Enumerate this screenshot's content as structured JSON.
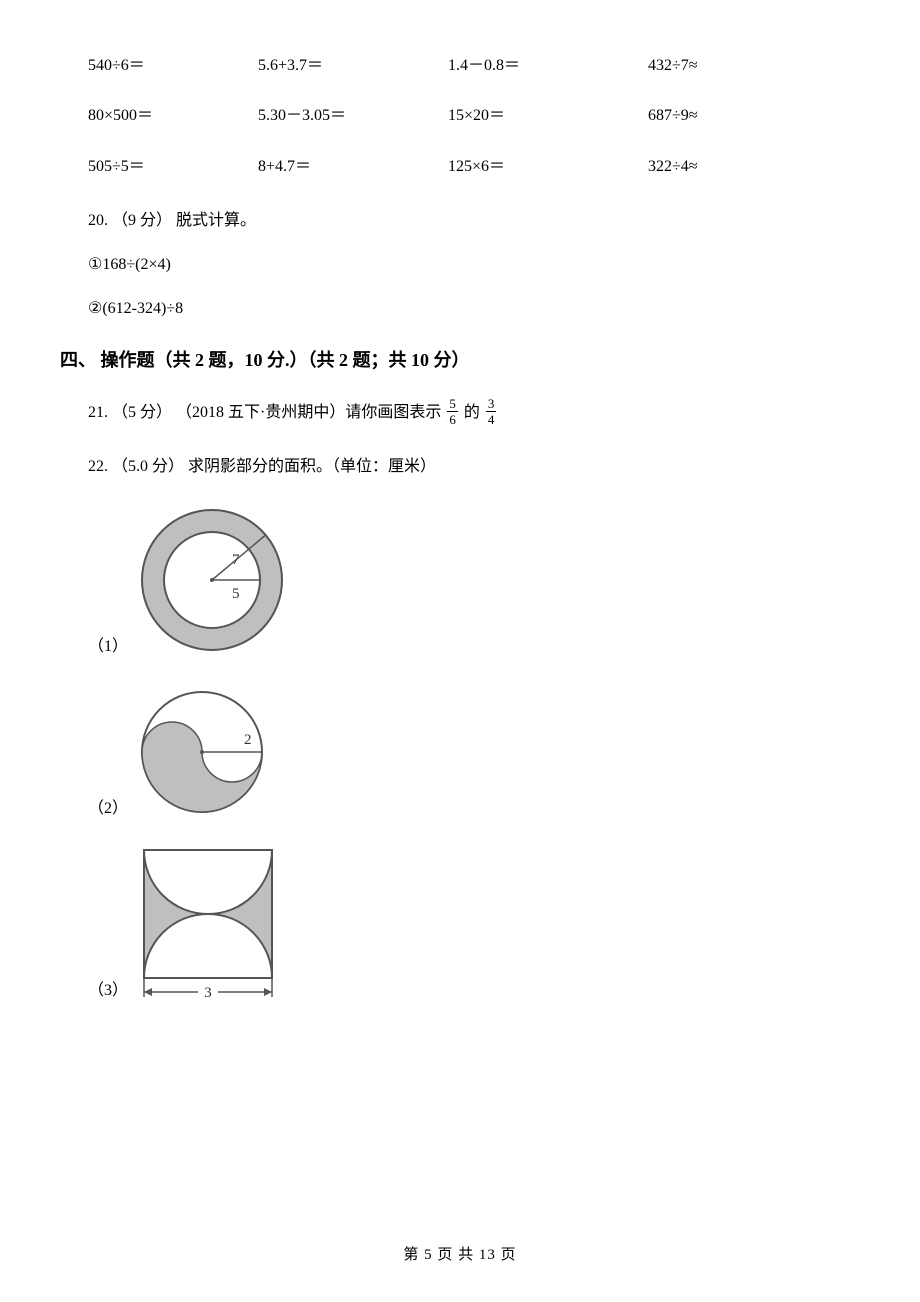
{
  "calc": {
    "rows": [
      {
        "c1": "540÷6＝",
        "c2": "5.6+3.7＝",
        "c3": "1.4－0.8＝",
        "c4": "432÷7≈"
      },
      {
        "c1": "80×500＝",
        "c2": "5.30－3.05＝",
        "c3": "15×20＝",
        "c4": "687÷9≈"
      },
      {
        "c1": "505÷5＝",
        "c2": "8+4.7＝",
        "c3": "125×6＝",
        "c4": "322÷4≈"
      }
    ]
  },
  "q20": {
    "title": "20. （9 分） 脱式计算。",
    "item1": "①168÷(2×4)",
    "item2": "②(612-324)÷8"
  },
  "section4": {
    "heading": "四、 操作题（共 2 题，10 分.）（共 2 题；共 10 分）"
  },
  "q21": {
    "prefix": "21. （5 分） （2018 五下·贵州期中）请你画图表示 ",
    "frac1_num": "5",
    "frac1_den": "6",
    "mid": " 的 ",
    "frac2_num": "3",
    "frac2_den": "4"
  },
  "q22": {
    "title": "22. （5.0 分） 求阴影部分的面积。（单位：厘米）"
  },
  "figs": {
    "f1": {
      "label": "（1）",
      "outer_r": 70,
      "inner_r": 48,
      "radius_label_outer": "7",
      "radius_label_inner": "5",
      "stroke": "#555555",
      "fill": "#bfbfbf",
      "text_color": "#333333"
    },
    "f2": {
      "label": "（2）",
      "big_r": 60,
      "small_r": 30,
      "radius_label": "2",
      "stroke": "#555555",
      "fill": "#bfbfbf",
      "text_color": "#333333"
    },
    "f3": {
      "label": "（3）",
      "side": 128,
      "dim_label": "3",
      "stroke": "#555555",
      "fill": "#bfbfbf",
      "text_color": "#333333"
    }
  },
  "footer": "第 5 页 共 13 页"
}
